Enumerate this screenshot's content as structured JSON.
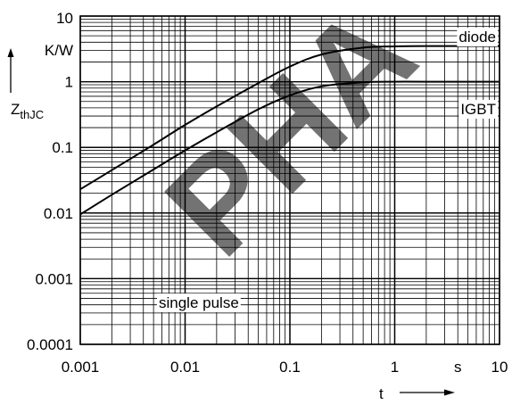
{
  "chart_data": {
    "type": "line",
    "x_scale": "log",
    "y_scale": "log",
    "xlim": [
      0.001,
      10
    ],
    "ylim": [
      0.0001,
      10
    ],
    "grid": true,
    "x_tick_labels": [
      "0.001",
      "0.01",
      "0.1",
      "1",
      "10"
    ],
    "y_tick_labels": [
      "0.0001",
      "0.001",
      "0.01",
      "0.1",
      "1",
      "10"
    ],
    "x_unit": "s",
    "y_unit": "K/W",
    "xlabel": "t",
    "ylabel_main": "Z",
    "ylabel_sub": "thJC",
    "annotation": "single pulse",
    "watermark": "PHA",
    "series": [
      {
        "name": "diode",
        "x": [
          0.001,
          0.002,
          0.005,
          0.01,
          0.02,
          0.05,
          0.1,
          0.2,
          0.5,
          1,
          2,
          5,
          10
        ],
        "y": [
          0.023,
          0.045,
          0.11,
          0.22,
          0.42,
          0.95,
          1.7,
          2.6,
          3.3,
          3.45,
          3.5,
          3.5,
          3.5
        ]
      },
      {
        "name": "IGBT",
        "x": [
          0.001,
          0.002,
          0.005,
          0.01,
          0.02,
          0.05,
          0.1,
          0.2,
          0.5,
          1,
          2,
          5,
          10
        ],
        "y": [
          0.0095,
          0.019,
          0.046,
          0.09,
          0.17,
          0.38,
          0.62,
          0.85,
          0.98,
          1.0,
          1.0,
          1.0,
          1.0
        ]
      }
    ]
  }
}
